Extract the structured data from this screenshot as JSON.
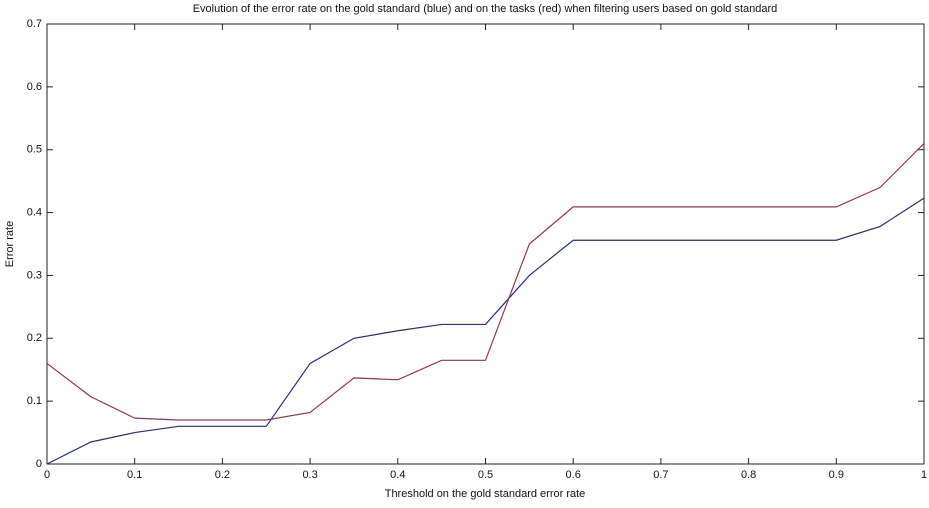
{
  "chart_data": {
    "type": "line",
    "title": "Evolution of the error rate on the gold standard (blue) and on the tasks (red) when filtering users based on gold standard",
    "x_label": "Threshold on the gold standard error rate",
    "y_label": "Error rate",
    "x": [
      0,
      0.05,
      0.1,
      0.15,
      0.2,
      0.25,
      0.3,
      0.35,
      0.4,
      0.45,
      0.5,
      0.55,
      0.6,
      0.65,
      0.7,
      0.75,
      0.8,
      0.85,
      0.9,
      0.95,
      1
    ],
    "series": [
      {
        "color": "#2b2d6e",
        "values": [
          0,
          0.035,
          0.05,
          0.06,
          0.06,
          0.06,
          0.16,
          0.2,
          0.212,
          0.222,
          0.222,
          0.3,
          0.356,
          0.356,
          0.356,
          0.356,
          0.356,
          0.356,
          0.356,
          0.378,
          0.423
        ]
      },
      {
        "color": "#8b3a4e",
        "values": [
          0.16,
          0.107,
          0.073,
          0.07,
          0.07,
          0.07,
          0.082,
          0.137,
          0.134,
          0.165,
          0.165,
          0.35,
          0.409,
          0.409,
          0.409,
          0.409,
          0.409,
          0.409,
          0.409,
          0.44,
          0.51
        ]
      }
    ],
    "xlim": [
      0,
      1
    ],
    "ylim": [
      0,
      0.7
    ],
    "xticks": [
      0,
      0.1,
      0.2,
      0.3,
      0.4,
      0.5,
      0.6,
      0.7,
      0.8,
      0.9,
      1
    ],
    "yticks": [
      0,
      0.1,
      0.2,
      0.3,
      0.4,
      0.5,
      0.6,
      0.7
    ],
    "grid": false
  }
}
